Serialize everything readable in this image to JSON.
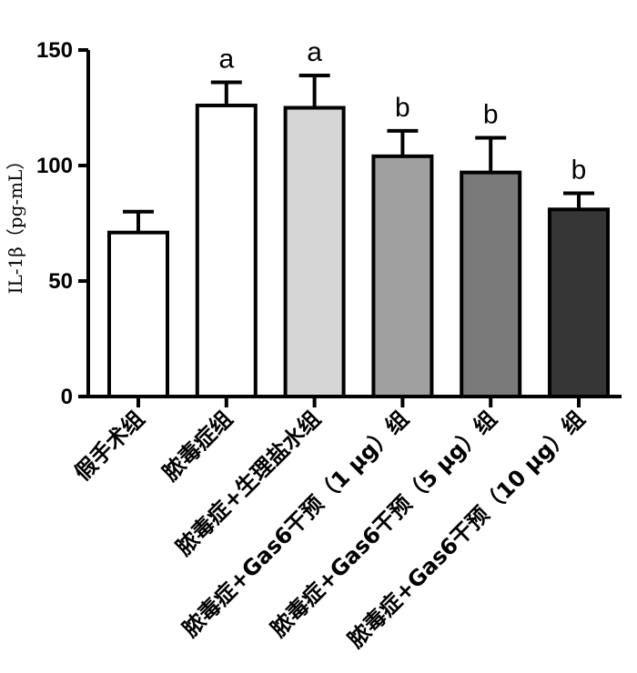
{
  "chart_data": {
    "type": "bar",
    "ylabel": "IL-1β（pg-mL）",
    "ylim": [
      0,
      150
    ],
    "yticks": [
      0,
      50,
      100,
      150
    ],
    "ytick_labels": [
      "0",
      "50",
      "100",
      "150"
    ],
    "grid": false,
    "categories": [
      "假手术组",
      "脓毒症组",
      "脓毒症+生理盐水组",
      "脓毒症+Gas6干预（1 μg）组",
      "脓毒症+Gas6干预（5 μg）组",
      "脓毒症+Gas6干预（10 μg）组"
    ],
    "values": [
      71,
      126,
      125,
      104,
      97,
      81
    ],
    "errors": [
      9,
      10,
      14,
      11,
      15,
      7
    ],
    "significance": [
      "",
      "a",
      "a",
      "b",
      "b",
      "b"
    ],
    "colors": [
      "#ffffff",
      "#ffffff",
      "#d6d6d6",
      "#a0a0a0",
      "#7a7a7a",
      "#363636"
    ]
  }
}
